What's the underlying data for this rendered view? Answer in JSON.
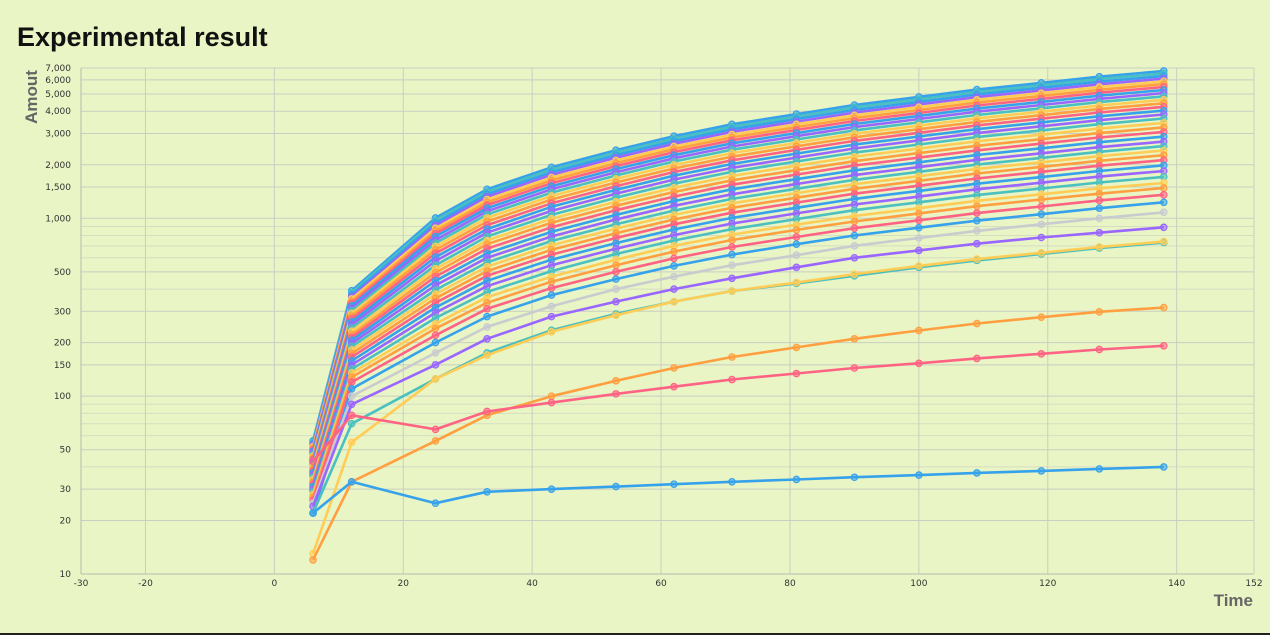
{
  "chart_data": {
    "type": "line",
    "title": "Experimental result",
    "xlabel": "Time",
    "ylabel": "Amout",
    "y_scale": "log",
    "xlim": [
      -30,
      152
    ],
    "ylim": [
      10,
      7000
    ],
    "x_ticks": [
      -30,
      -20,
      0,
      20,
      40,
      60,
      80,
      100,
      120,
      140,
      152
    ],
    "y_ticks": [
      10,
      20,
      30,
      50,
      100,
      150,
      200,
      300,
      500,
      1000,
      1500,
      2000,
      3000,
      4000,
      5000,
      6000,
      7000
    ],
    "y_tick_labels": [
      "10",
      "20",
      "30",
      "50",
      "100",
      "150",
      "200",
      "300",
      "500",
      "1,000",
      "1,500",
      "2,000",
      "3,000",
      "4,000",
      "5,000",
      "6,000",
      "7,000"
    ],
    "grid": true,
    "legend": "none",
    "x": [
      6,
      12,
      25,
      33,
      43,
      53,
      62,
      71,
      81,
      90,
      100,
      109,
      119,
      128,
      138
    ],
    "series": [
      {
        "color": "#36a2eb",
        "values": [
          22,
          33,
          25,
          29,
          30,
          31,
          32,
          33,
          34,
          35,
          36,
          37,
          38,
          39,
          40
        ]
      },
      {
        "color": "#ff6384",
        "values": [
          43,
          78,
          65,
          82,
          92,
          103,
          113,
          124,
          134,
          144,
          153,
          163,
          173,
          183,
          192
        ]
      },
      {
        "color": "#ff9f40",
        "values": [
          12,
          33,
          56,
          78,
          100,
          122,
          144,
          166,
          188,
          210,
          234,
          256,
          278,
          298,
          315
        ]
      },
      {
        "color": "#ffcd56",
        "values": [
          13,
          55,
          125,
          170,
          230,
          285,
          340,
          390,
          435,
          485,
          540,
          590,
          640,
          690,
          740
        ]
      },
      {
        "color": "#4bc0c0",
        "values": [
          22,
          70,
          125,
          175,
          235,
          290,
          340,
          390,
          430,
          475,
          530,
          580,
          630,
          680,
          730
        ]
      },
      {
        "color": "#9966ff",
        "values": [
          24,
          90,
          150,
          210,
          280,
          340,
          400,
          460,
          530,
          600,
          660,
          720,
          780,
          830,
          890
        ]
      },
      {
        "color": "#c9cbcf",
        "values": [
          25,
          100,
          175,
          245,
          320,
          400,
          470,
          545,
          620,
          700,
          775,
          850,
          925,
          1000,
          1080
        ]
      },
      {
        "color": "#36a2eb",
        "values": [
          22,
          110,
          200,
          280,
          370,
          455,
          540,
          625,
          715,
          800,
          885,
          970,
          1055,
          1140,
          1230
        ]
      },
      {
        "color": "#ff6384",
        "values": [
          26,
          120,
          220,
          310,
          405,
          500,
          595,
          690,
          785,
          880,
          975,
          1070,
          1165,
          1260,
          1355
        ]
      },
      {
        "color": "#ff9f40",
        "values": [
          27,
          128,
          240,
          335,
          440,
          545,
          650,
          755,
          860,
          960,
          1065,
          1170,
          1275,
          1375,
          1480
        ]
      },
      {
        "color": "#ffcd56",
        "values": [
          28,
          135,
          255,
          360,
          470,
          585,
          700,
          810,
          920,
          1030,
          1140,
          1255,
          1365,
          1475,
          1580
        ]
      },
      {
        "color": "#4bc0c0",
        "values": [
          29,
          142,
          275,
          385,
          505,
          630,
          750,
          870,
          990,
          1110,
          1230,
          1350,
          1470,
          1590,
          1710
        ]
      },
      {
        "color": "#9966ff",
        "values": [
          30,
          150,
          295,
          415,
          545,
          675,
          805,
          935,
          1065,
          1195,
          1325,
          1455,
          1585,
          1715,
          1845
        ]
      },
      {
        "color": "#36a2eb",
        "values": [
          31,
          158,
          315,
          445,
          585,
          725,
          865,
          1005,
          1145,
          1285,
          1425,
          1565,
          1705,
          1845,
          1985
        ]
      },
      {
        "color": "#ff6384",
        "values": [
          32,
          166,
          335,
          475,
          625,
          775,
          925,
          1075,
          1225,
          1375,
          1525,
          1675,
          1825,
          1975,
          2125
        ]
      },
      {
        "color": "#ff9f40",
        "values": [
          33,
          174,
          355,
          505,
          665,
          825,
          985,
          1145,
          1305,
          1465,
          1625,
          1785,
          1945,
          2105,
          2265
        ]
      },
      {
        "color": "#ffcd56",
        "values": [
          34,
          182,
          375,
          535,
          705,
          875,
          1045,
          1215,
          1385,
          1555,
          1725,
          1895,
          2065,
          2235,
          2405
        ]
      },
      {
        "color": "#4bc0c0",
        "values": [
          35,
          190,
          395,
          565,
          745,
          925,
          1105,
          1285,
          1465,
          1645,
          1825,
          2005,
          2185,
          2365,
          2545
        ]
      },
      {
        "color": "#9966ff",
        "values": [
          36,
          198,
          420,
          600,
          790,
          985,
          1175,
          1365,
          1560,
          1750,
          1940,
          2130,
          2320,
          2510,
          2700
        ]
      },
      {
        "color": "#36a2eb",
        "values": [
          37,
          206,
          445,
          635,
          840,
          1045,
          1250,
          1455,
          1660,
          1860,
          2065,
          2270,
          2475,
          2680,
          2880
        ]
      },
      {
        "color": "#ff6384",
        "values": [
          38,
          214,
          470,
          675,
          890,
          1110,
          1325,
          1545,
          1760,
          1980,
          2195,
          2410,
          2630,
          2845,
          3060
        ]
      },
      {
        "color": "#ff9f40",
        "values": [
          39,
          222,
          495,
          715,
          945,
          1175,
          1405,
          1635,
          1865,
          2095,
          2325,
          2555,
          2785,
          3015,
          3245
        ]
      },
      {
        "color": "#ffcd56",
        "values": [
          40,
          232,
          520,
          750,
          995,
          1240,
          1485,
          1730,
          1975,
          2220,
          2465,
          2710,
          2950,
          3195,
          3440
        ]
      },
      {
        "color": "#4bc0c0",
        "values": [
          41,
          242,
          545,
          790,
          1045,
          1305,
          1565,
          1825,
          2085,
          2340,
          2600,
          2860,
          3120,
          3380,
          3640
        ]
      },
      {
        "color": "#9966ff",
        "values": [
          42,
          252,
          575,
          830,
          1100,
          1375,
          1650,
          1920,
          2195,
          2470,
          2740,
          3015,
          3290,
          3560,
          3835
        ]
      },
      {
        "color": "#36a2eb",
        "values": [
          43,
          262,
          605,
          870,
          1160,
          1445,
          1735,
          2020,
          2310,
          2595,
          2885,
          3170,
          3460,
          3745,
          4035
        ]
      },
      {
        "color": "#ff6384",
        "values": [
          44,
          272,
          635,
          915,
          1215,
          1515,
          1820,
          2120,
          2425,
          2725,
          3025,
          3330,
          3630,
          3935,
          4235
        ]
      },
      {
        "color": "#ff9f40",
        "values": [
          45,
          282,
          665,
          960,
          1275,
          1590,
          1905,
          2220,
          2540,
          2855,
          3170,
          3485,
          3800,
          4120,
          4435
        ]
      },
      {
        "color": "#ffcd56",
        "values": [
          46,
          292,
          695,
          1005,
          1335,
          1665,
          1995,
          2325,
          2655,
          2985,
          3315,
          3645,
          3975,
          4305,
          4635
        ]
      },
      {
        "color": "#4bc0c0",
        "values": [
          47,
          302,
          725,
          1050,
          1395,
          1740,
          2085,
          2430,
          2775,
          3120,
          3465,
          3810,
          4155,
          4500,
          4845
        ]
      },
      {
        "color": "#9966ff",
        "values": [
          48,
          312,
          755,
          1095,
          1455,
          1815,
          2175,
          2535,
          2895,
          3255,
          3615,
          3975,
          4335,
          4695,
          5055
        ]
      },
      {
        "color": "#36a2eb",
        "values": [
          49,
          322,
          790,
          1140,
          1515,
          1890,
          2265,
          2640,
          3015,
          3390,
          3765,
          4140,
          4515,
          4890,
          5265
        ]
      },
      {
        "color": "#ff6384",
        "values": [
          50,
          332,
          820,
          1185,
          1575,
          1965,
          2355,
          2745,
          3135,
          3525,
          3915,
          4305,
          4695,
          5085,
          5475
        ]
      },
      {
        "color": "#ff9f40",
        "values": [
          51,
          342,
          850,
          1230,
          1635,
          2040,
          2445,
          2850,
          3255,
          3660,
          4065,
          4470,
          4875,
          5280,
          5685
        ]
      },
      {
        "color": "#ffcd56",
        "values": [
          52,
          352,
          880,
          1275,
          1695,
          2115,
          2535,
          2955,
          3375,
          3795,
          4215,
          4635,
          5055,
          5475,
          5895
        ]
      },
      {
        "color": "#9966ff",
        "values": [
          53,
          362,
          910,
          1320,
          1755,
          2190,
          2625,
          3060,
          3495,
          3930,
          4365,
          4800,
          5235,
          5670,
          6105
        ]
      },
      {
        "color": "#36a2eb",
        "values": [
          54,
          372,
          940,
          1365,
          1815,
          2265,
          2715,
          3165,
          3615,
          4065,
          4515,
          4965,
          5415,
          5865,
          6315
        ]
      },
      {
        "color": "#4bc0c0",
        "values": [
          55,
          382,
          975,
          1410,
          1875,
          2340,
          2805,
          3270,
          3735,
          4200,
          4665,
          5130,
          5595,
          6060,
          6525
        ]
      },
      {
        "color": "#36a2eb",
        "values": [
          56,
          392,
          1005,
          1455,
          1935,
          2415,
          2895,
          3375,
          3855,
          4335,
          4815,
          5295,
          5775,
          6255,
          6735
        ]
      }
    ]
  }
}
